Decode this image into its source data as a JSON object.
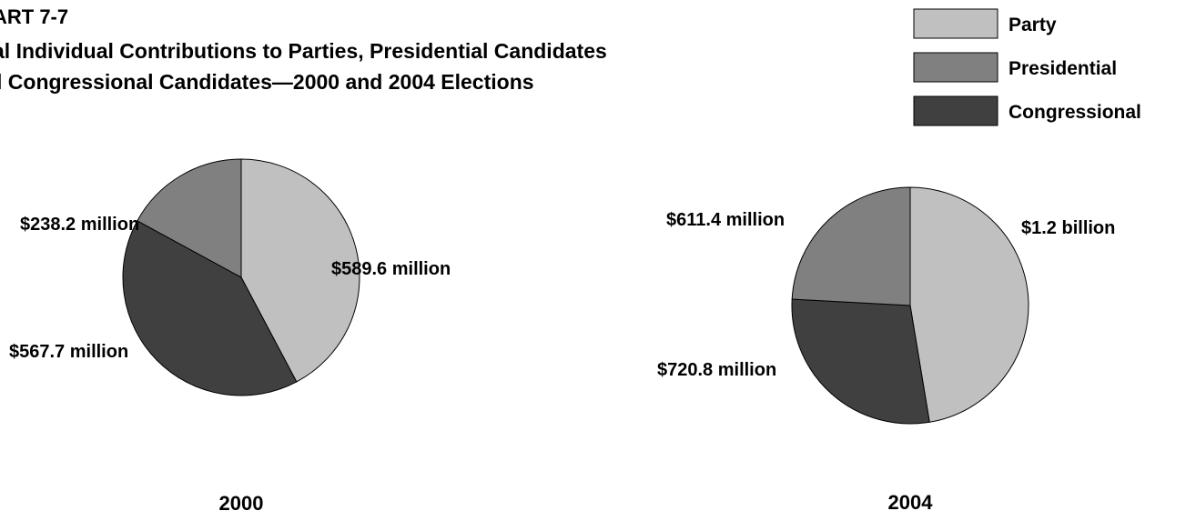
{
  "header": {
    "code": "ART 7-7",
    "title_line1": "al Individual Contributions to Parties, Presidential Candidates",
    "title_line2": "l Congressional Candidates—2000 and 2004 Elections"
  },
  "legend": {
    "position": "top-right",
    "items": [
      {
        "label": "Party",
        "color": "#c0c0c0"
      },
      {
        "label": "Presidential",
        "color": "#808080"
      },
      {
        "label": "Congressional",
        "color": "#404040"
      }
    ]
  },
  "chart_data": [
    {
      "type": "pie",
      "title": "2000",
      "slices": [
        {
          "category": "Party",
          "value": 589.6,
          "unit": "million",
          "label": "$589.6 million",
          "color": "#c0c0c0"
        },
        {
          "category": "Congressional",
          "value": 567.7,
          "unit": "million",
          "label": "$567.7 million",
          "color": "#404040"
        },
        {
          "category": "Presidential",
          "value": 238.2,
          "unit": "million",
          "label": "$238.2 million",
          "color": "#808080"
        }
      ]
    },
    {
      "type": "pie",
      "title": "2004",
      "slices": [
        {
          "category": "Party",
          "value": 1200,
          "unit": "million",
          "label": "$1.2 billion",
          "color": "#c0c0c0"
        },
        {
          "category": "Congressional",
          "value": 720.8,
          "unit": "million",
          "label": "$720.8 million",
          "color": "#404040"
        },
        {
          "category": "Presidential",
          "value": 611.4,
          "unit": "million",
          "label": "$611.4 million",
          "color": "#808080"
        }
      ]
    }
  ]
}
